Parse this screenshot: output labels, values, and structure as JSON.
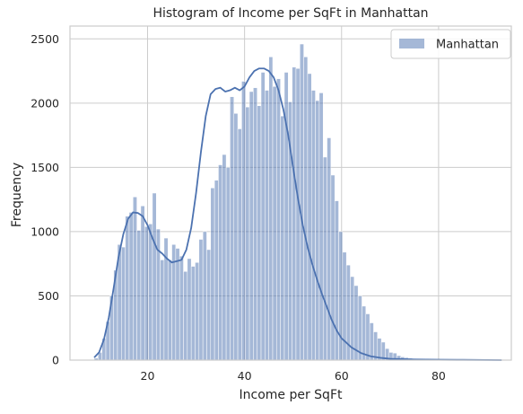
{
  "chart_data": {
    "type": "bar",
    "title": "Histogram of Income per SqFt in Manhattan",
    "xlabel": "Income per SqFt",
    "ylabel": "Frequency",
    "xlim": [
      4,
      95
    ],
    "ylim": [
      0,
      2600
    ],
    "xticks": [
      20,
      40,
      60,
      80
    ],
    "yticks": [
      0,
      500,
      1000,
      1500,
      2000,
      2500
    ],
    "grid": true,
    "legend": {
      "position": "top-right",
      "entries": [
        "Manhattan"
      ]
    },
    "colors": {
      "bar_fill": "#4c72b0",
      "kde_line": "#4c72b0",
      "grid": "#cccccc"
    },
    "histogram": {
      "bin_start": 9.0,
      "bin_width": 0.8,
      "series": [
        {
          "name": "Manhattan",
          "counts": [
            15,
            60,
            170,
            300,
            500,
            700,
            900,
            880,
            1120,
            1150,
            1270,
            1010,
            1200,
            1040,
            1060,
            1300,
            1020,
            780,
            950,
            780,
            900,
            870,
            810,
            690,
            790,
            730,
            760,
            940,
            1000,
            860,
            1340,
            1400,
            1520,
            1600,
            1500,
            2050,
            1920,
            1800,
            2170,
            1970,
            2090,
            2120,
            1980,
            2240,
            2100,
            2360,
            2130,
            2190,
            1900,
            2240,
            2010,
            2280,
            2270,
            2460,
            2360,
            2230,
            2100,
            2020,
            2080,
            1580,
            1730,
            1440,
            1240,
            1000,
            840,
            740,
            650,
            580,
            500,
            420,
            360,
            290,
            220,
            170,
            140,
            90,
            60,
            55,
            35,
            25,
            20,
            15,
            12,
            10,
            9,
            8,
            7,
            6,
            5,
            4,
            4,
            3,
            3,
            2,
            2,
            2,
            1,
            1,
            1,
            1,
            1,
            1,
            1,
            1,
            1,
            1
          ]
        }
      ]
    },
    "kde": {
      "series": "Manhattan",
      "x": [
        9,
        10,
        11,
        12,
        13,
        14,
        15,
        16,
        17,
        18,
        19,
        20,
        21,
        22,
        23,
        24,
        25,
        26,
        27,
        28,
        29,
        30,
        31,
        32,
        33,
        34,
        35,
        36,
        37,
        38,
        39,
        40,
        41,
        42,
        43,
        44,
        45,
        46,
        47,
        48,
        49,
        50,
        51,
        52,
        53,
        54,
        55,
        56,
        57,
        58,
        59,
        60,
        62,
        64,
        66,
        68,
        70,
        75,
        80,
        85,
        90,
        93
      ],
      "y": [
        20,
        60,
        160,
        330,
        560,
        800,
        980,
        1100,
        1150,
        1145,
        1120,
        1050,
        950,
        860,
        830,
        790,
        760,
        770,
        780,
        860,
        1030,
        1300,
        1620,
        1900,
        2070,
        2110,
        2120,
        2090,
        2100,
        2120,
        2100,
        2130,
        2200,
        2250,
        2270,
        2270,
        2250,
        2200,
        2100,
        1950,
        1750,
        1500,
        1260,
        1050,
        880,
        740,
        620,
        510,
        410,
        310,
        230,
        170,
        100,
        55,
        30,
        18,
        10,
        5,
        3,
        2,
        1,
        0
      ]
    }
  }
}
